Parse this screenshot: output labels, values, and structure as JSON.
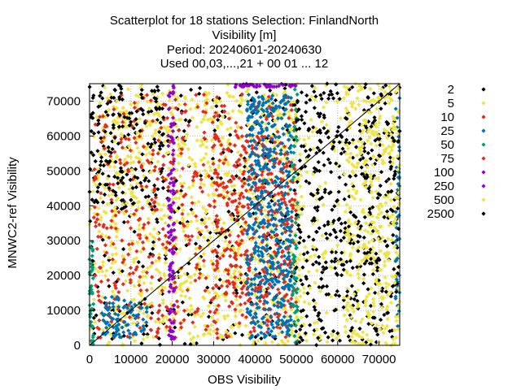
{
  "chart_data": {
    "type": "scatter",
    "title_lines": [
      "Scatterplot for   18 stations Selection: FinlandNorth",
      "Visibility [m]",
      "Period: 20240601-20240630",
      "Used 00,03,...,21 + 00 01 ... 12"
    ],
    "xlabel": "OBS Visibility",
    "ylabel": "MNWC2-ref Visibility",
    "xlim": [
      0,
      75000
    ],
    "ylim": [
      0,
      75000
    ],
    "xticks": [
      "0",
      "10000",
      "20000",
      "30000",
      "40000",
      "50000",
      "60000",
      "70000"
    ],
    "xtick_values": [
      0,
      10000,
      20000,
      30000,
      40000,
      50000,
      60000,
      70000
    ],
    "yticks": [
      "0",
      "10000",
      "20000",
      "30000",
      "40000",
      "50000",
      "60000",
      "70000"
    ],
    "ytick_values": [
      0,
      10000,
      20000,
      30000,
      40000,
      50000,
      60000,
      70000
    ],
    "grid": true,
    "diagonal": true,
    "legend_placement": "right",
    "series": [
      {
        "name": "2",
        "color": "#000000"
      },
      {
        "name": "5",
        "color": "#f0e442"
      },
      {
        "name": "10",
        "color": "#e52b1c"
      },
      {
        "name": "25",
        "color": "#0072b2"
      },
      {
        "name": "50",
        "color": "#009e73"
      },
      {
        "name": "75",
        "color": "#e52b1c"
      },
      {
        "name": "100",
        "color": "#9400d3"
      },
      {
        "name": "250",
        "color": "#9400d3"
      },
      {
        "name": "500",
        "color": "#f0e442"
      },
      {
        "name": "2500",
        "color": "#000000"
      }
    ],
    "clusters": [
      {
        "series": 0,
        "x": [
          0,
          75000
        ],
        "y": [
          0,
          75000
        ],
        "n": 520
      },
      {
        "series": 1,
        "x": [
          0,
          75000
        ],
        "y": [
          0,
          75000
        ],
        "n": 700
      },
      {
        "series": 1,
        "x": [
          2000,
          52000
        ],
        "y": [
          2000,
          72000
        ],
        "n": 650
      },
      {
        "series": 2,
        "x": [
          1000,
          50000
        ],
        "y": [
          2000,
          72000
        ],
        "n": 560
      },
      {
        "series": 2,
        "x": [
          30000,
          50000
        ],
        "y": [
          10000,
          60000
        ],
        "n": 260
      },
      {
        "series": 3,
        "x": [
          38000,
          49000
        ],
        "y": [
          2000,
          72000
        ],
        "n": 520
      },
      {
        "series": 3,
        "x": [
          3000,
          14000
        ],
        "y": [
          2000,
          14000
        ],
        "n": 90
      },
      {
        "series": 3,
        "x": [
          74000,
          75000
        ],
        "y": [
          5000,
          73000
        ],
        "n": 50
      },
      {
        "series": 4,
        "x": [
          0,
          1000
        ],
        "y": [
          0,
          30000
        ],
        "n": 40
      },
      {
        "series": 4,
        "x": [
          49000,
          50500
        ],
        "y": [
          0,
          75000
        ],
        "n": 60
      },
      {
        "series": 6,
        "x": [
          19000,
          20500
        ],
        "y": [
          0,
          75000
        ],
        "n": 110
      },
      {
        "series": 6,
        "x": [
          35000,
          50000
        ],
        "y": [
          74000,
          75000
        ],
        "n": 40
      },
      {
        "series": 0,
        "x": [
          50000,
          75000
        ],
        "y": [
          0,
          75000
        ],
        "n": 320
      },
      {
        "series": 8,
        "x": [
          62000,
          75000
        ],
        "y": [
          0,
          75000
        ],
        "n": 280
      },
      {
        "series": 0,
        "x": [
          0,
          18000
        ],
        "y": [
          40000,
          75000
        ],
        "n": 140
      }
    ]
  }
}
